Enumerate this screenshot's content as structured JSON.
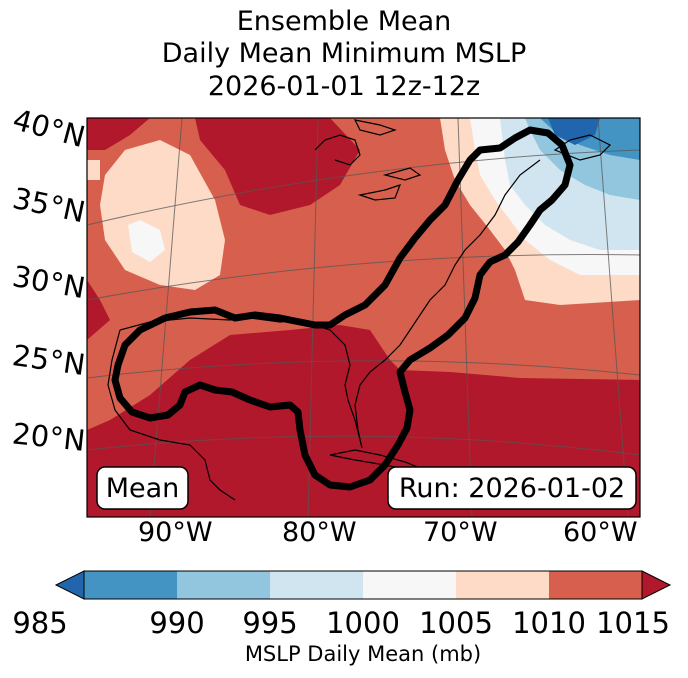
{
  "title": {
    "line1": "Ensemble Mean",
    "line2": "Daily Mean Minimum MSLP",
    "line3": "2026-01-01 12z-12z"
  },
  "map": {
    "lat_labels": [
      "40°N",
      "35°N",
      "30°N",
      "25°N",
      "20°N"
    ],
    "lon_labels": [
      "90°W",
      "80°W",
      "70°W",
      "60°W"
    ],
    "mean_label": "Mean",
    "run_label": "Run: 2026-01-02"
  },
  "colorbar": {
    "label": "MSLP Daily Mean (mb)",
    "ticks": [
      "985",
      "990",
      "995",
      "1000",
      "1005",
      "1010",
      "1015"
    ],
    "colors": {
      "below": "#2166ac",
      "985-990": "#4393c3",
      "990-995": "#92c5de",
      "995-1000": "#d1e5f0",
      "1000-1005": "#f7f7f7",
      "1005-1010": "#fddbc7",
      "1010-1015": "#d6604d",
      "above": "#b2182b"
    }
  }
}
